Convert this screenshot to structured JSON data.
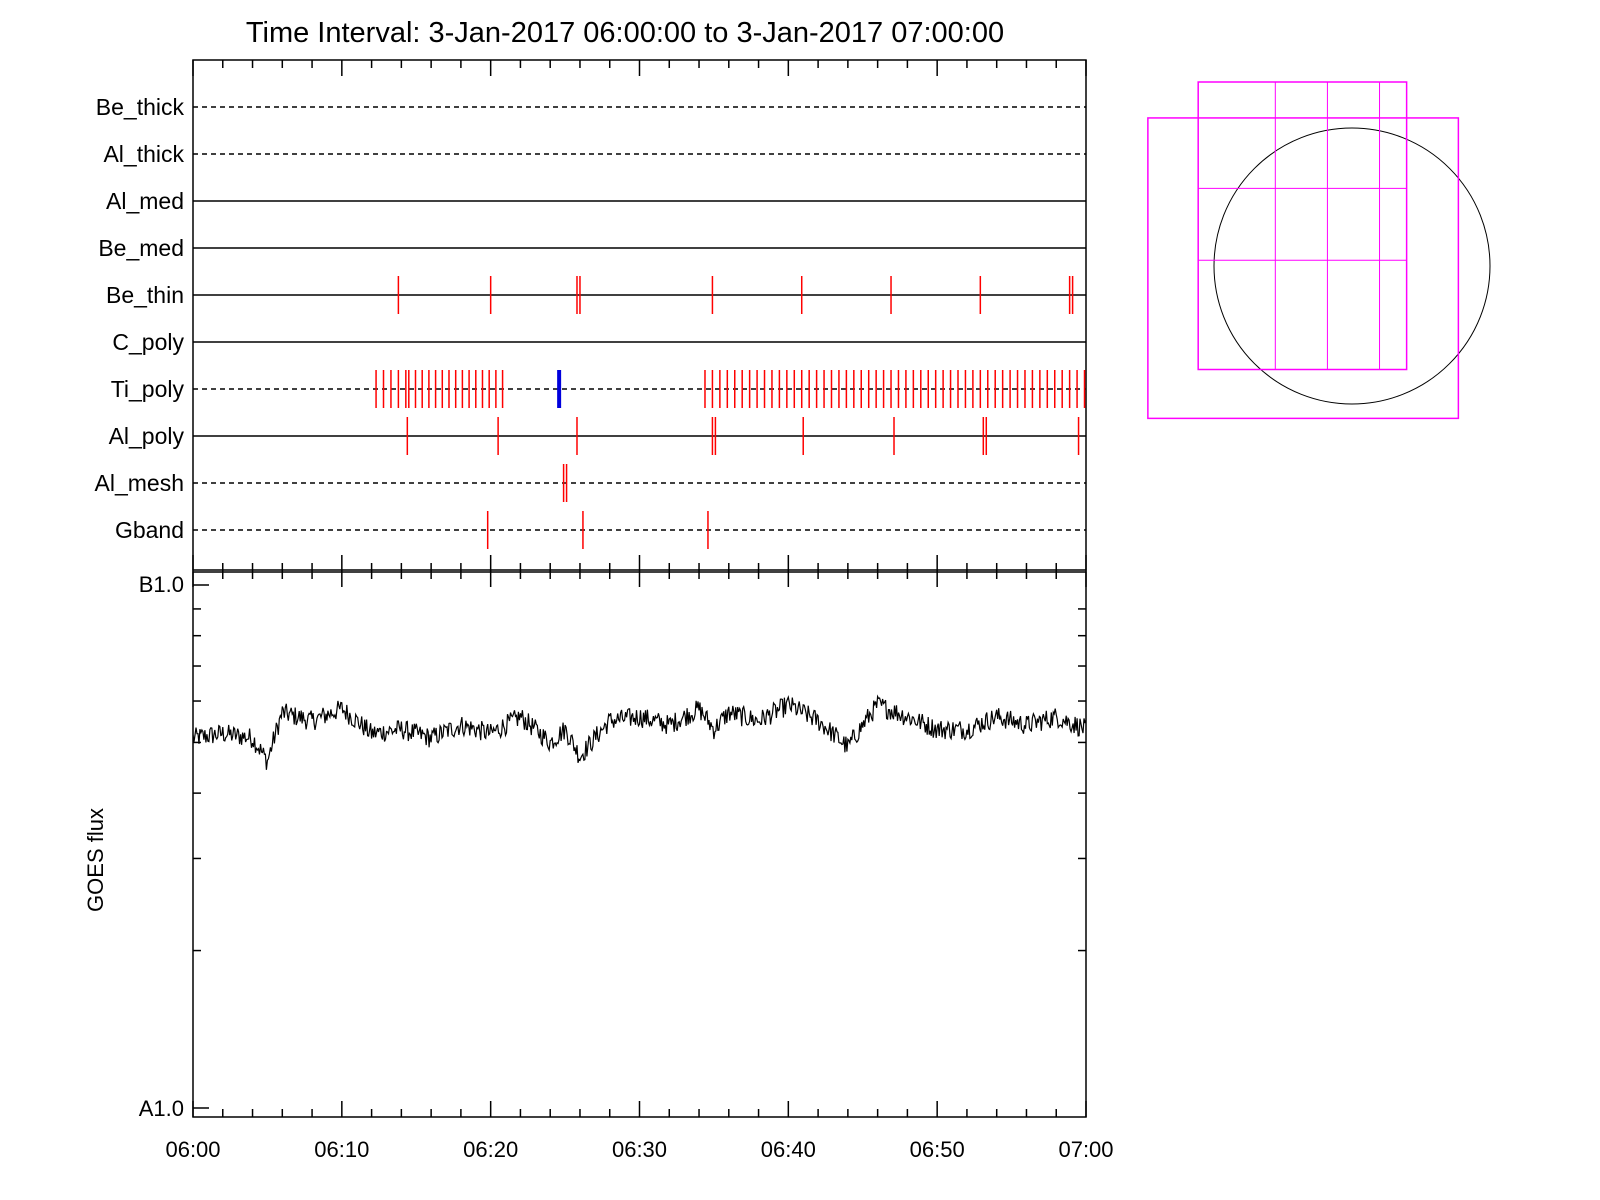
{
  "title": "Time Interval:  3-Jan-2017 06:00:00 to  3-Jan-2017 07:00:00",
  "colors": {
    "axis": "#000000",
    "event_tick": "#ff0000",
    "highlight_tick": "#0000dd",
    "fov_box": "#ff00ff",
    "sun_disk": "#000000",
    "flux_line": "#000000"
  },
  "chart_data": [
    {
      "type": "timeline",
      "x_unit": "minutes after 06:00",
      "xlim": [
        0,
        60
      ],
      "rows": [
        {
          "label": "Be_thick",
          "line": "dashed",
          "ticks": []
        },
        {
          "label": "Al_thick",
          "line": "dashed",
          "ticks": []
        },
        {
          "label": "Al_med",
          "line": "solid",
          "ticks": []
        },
        {
          "label": "Be_med",
          "line": "solid",
          "ticks": []
        },
        {
          "label": "Be_thin",
          "line": "solid",
          "ticks": [
            13.8,
            20.0,
            25.8,
            26.0,
            34.9,
            40.9,
            46.9,
            52.9,
            58.9,
            59.1
          ]
        },
        {
          "label": "C_poly",
          "line": "solid",
          "ticks": []
        },
        {
          "label": "Ti_poly",
          "line": "dashed",
          "ticks_ranges": [
            {
              "from": 12.3,
              "to": 14.4,
              "step": 0.5
            },
            {
              "from": 14.5,
              "to": 20.9,
              "step": 0.45
            },
            {
              "from": 34.4,
              "to": 60.0,
              "step": 0.5
            }
          ],
          "highlight": [
            24.6
          ]
        },
        {
          "label": "Al_poly",
          "line": "solid",
          "ticks": [
            14.4,
            20.5,
            25.8,
            34.9,
            35.1,
            41.0,
            47.1,
            53.1,
            53.3,
            59.5
          ]
        },
        {
          "label": "Al_mesh",
          "line": "dashed",
          "ticks": [
            24.9,
            25.1
          ]
        },
        {
          "label": "Gband",
          "line": "dashed",
          "ticks": [
            19.8,
            26.2,
            34.6
          ]
        }
      ]
    },
    {
      "type": "line",
      "x_tick_labels": [
        "06:00",
        "06:10",
        "06:20",
        "06:30",
        "06:40",
        "06:50",
        "07:00"
      ],
      "x_ticks_min": [
        0,
        10,
        20,
        30,
        40,
        50,
        60
      ],
      "xlim": [
        0,
        60
      ],
      "y_scale": "log",
      "ylim_w_m2": [
        1e-08,
        1e-07
      ],
      "y_tick_labels": [
        "A1.0",
        "B1.0"
      ],
      "ylabel": "GOES flux",
      "series": [
        {
          "x_min": [
            0,
            2,
            4,
            5,
            6,
            8,
            10,
            12,
            14,
            16,
            18,
            20,
            22,
            24,
            25,
            26,
            28,
            30,
            32,
            34,
            35,
            36,
            38,
            40,
            42,
            44,
            46,
            48,
            50,
            52,
            54,
            56,
            58,
            60
          ],
          "y_w_m2": [
            5.1e-08,
            5.2e-08,
            5.1e-08,
            4.6e-08,
            5.7e-08,
            5.5e-08,
            5.8e-08,
            5.2e-08,
            5.3e-08,
            5.1e-08,
            5.4e-08,
            5.2e-08,
            5.6e-08,
            5e-08,
            5.3e-08,
            4.7e-08,
            5.5e-08,
            5.6e-08,
            5.4e-08,
            5.8e-08,
            5.3e-08,
            5.7e-08,
            5.5e-08,
            5.9e-08,
            5.5e-08,
            4.9e-08,
            5.9e-08,
            5.6e-08,
            5.3e-08,
            5.3e-08,
            5.6e-08,
            5.4e-08,
            5.6e-08,
            5.3e-08
          ]
        }
      ]
    },
    {
      "type": "diagram",
      "sun_disk_radius_arcsec": 960,
      "fov_boxes_arcsec": [
        {
          "xmin": -1070,
          "xmax": 380,
          "ymin": -720,
          "ymax": 1280
        },
        {
          "xmin": -1420,
          "xmax": 740,
          "ymin": -1060,
          "ymax": 1030
        }
      ]
    }
  ]
}
